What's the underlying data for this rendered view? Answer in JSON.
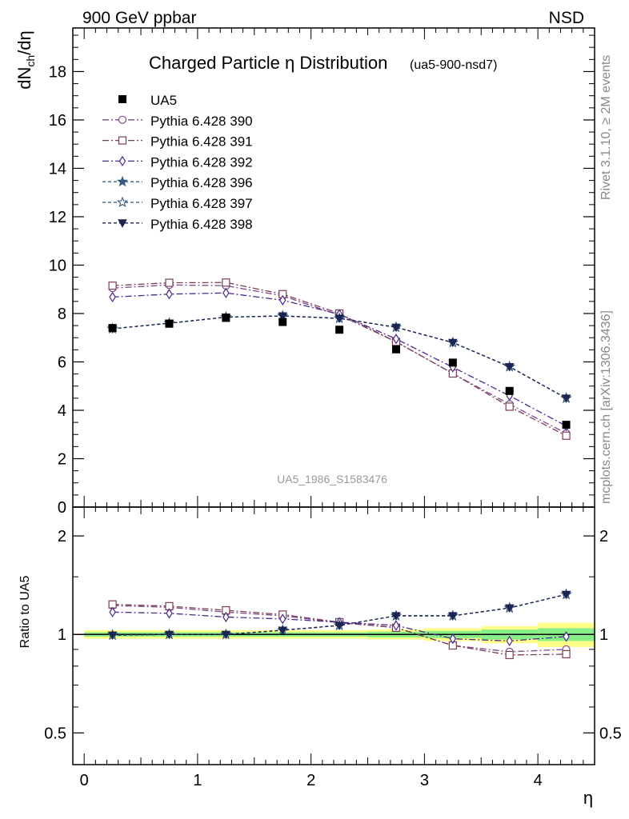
{
  "header": {
    "left_label": "900 GeV ppbar",
    "right_label": "NSD",
    "side_label_top": "Rivet 3.1.10, ≥ 2M events",
    "side_label_bottom": "mcplots.cern.ch [arXiv:1306.3436]"
  },
  "chart_data": [
    {
      "type": "line",
      "title": "Charged Particle η Distribution",
      "subtitle": "(ua5-900-nsd7)",
      "ylabel": "dN_ch/dη",
      "xlim": [
        -0.1,
        4.5
      ],
      "ylim": [
        0,
        19.8
      ],
      "yticks": [
        0,
        2,
        4,
        6,
        8,
        10,
        12,
        14,
        16,
        18
      ],
      "watermark": "UA5_1986_S1583476",
      "x": [
        0.25,
        0.75,
        1.25,
        1.75,
        2.25,
        2.75,
        3.25,
        3.75,
        4.25
      ],
      "data": {
        "name": "UA5",
        "values": [
          7.4,
          7.58,
          7.82,
          7.65,
          7.33,
          6.52,
          5.97,
          4.8,
          3.4
        ]
      },
      "series": [
        {
          "name": "Pythia 6.428 390",
          "color": "#7b4a8c",
          "marker": "circle-open",
          "dash": "dashdot",
          "values": [
            9.05,
            9.18,
            9.15,
            8.73,
            7.93,
            6.83,
            5.52,
            4.25,
            3.05
          ]
        },
        {
          "name": "Pythia 6.428 391",
          "color": "#7a3f55",
          "marker": "square-open",
          "dash": "dashdot",
          "values": [
            9.15,
            9.27,
            9.28,
            8.8,
            8.0,
            6.83,
            5.52,
            4.15,
            2.95
          ]
        },
        {
          "name": "Pythia 6.428 392",
          "color": "#4b2a8a",
          "marker": "diamond-open",
          "dash": "dashdot",
          "values": [
            8.68,
            8.8,
            8.85,
            8.55,
            7.97,
            6.95,
            5.78,
            4.6,
            3.35
          ]
        },
        {
          "name": "Pythia 6.428 396",
          "color": "#355c7d",
          "marker": "star-filled",
          "dash": "dashed",
          "values": [
            7.37,
            7.6,
            7.85,
            7.9,
            7.8,
            7.43,
            6.8,
            5.8,
            4.5
          ]
        },
        {
          "name": "Pythia 6.428 397",
          "color": "#2a4f74",
          "marker": "star-open",
          "dash": "dashed",
          "values": [
            7.37,
            7.6,
            7.85,
            7.9,
            7.8,
            7.43,
            6.8,
            5.8,
            4.5
          ]
        },
        {
          "name": "Pythia 6.428 398",
          "color": "#1c2454",
          "marker": "triangle-down-filled",
          "dash": "dashed",
          "values": [
            7.37,
            7.6,
            7.85,
            7.9,
            7.8,
            7.43,
            6.8,
            5.8,
            4.5
          ]
        }
      ]
    },
    {
      "type": "line",
      "ylabel": "Ratio to UA5",
      "xlabel": "η",
      "xlim": [
        -0.1,
        4.5
      ],
      "ylim": [
        0.4,
        2.45
      ],
      "yticks": [
        0.5,
        1,
        2
      ],
      "xticks": [
        0,
        1,
        2,
        3,
        4
      ],
      "bands": [
        {
          "x0": 0.0,
          "x1": 0.5,
          "inner": [
            0.985,
            1.015
          ],
          "outer": [
            0.97,
            1.03
          ]
        },
        {
          "x0": 0.5,
          "x1": 1.0,
          "inner": [
            0.985,
            1.015
          ],
          "outer": [
            0.97,
            1.03
          ]
        },
        {
          "x0": 1.0,
          "x1": 1.5,
          "inner": [
            0.985,
            1.015
          ],
          "outer": [
            0.97,
            1.03
          ]
        },
        {
          "x0": 1.5,
          "x1": 2.0,
          "inner": [
            0.985,
            1.015
          ],
          "outer": [
            0.97,
            1.03
          ]
        },
        {
          "x0": 2.0,
          "x1": 2.5,
          "inner": [
            0.985,
            1.015
          ],
          "outer": [
            0.97,
            1.03
          ]
        },
        {
          "x0": 2.5,
          "x1": 3.0,
          "inner": [
            0.98,
            1.02
          ],
          "outer": [
            0.965,
            1.035
          ]
        },
        {
          "x0": 3.0,
          "x1": 3.5,
          "inner": [
            0.975,
            1.025
          ],
          "outer": [
            0.955,
            1.045
          ]
        },
        {
          "x0": 3.5,
          "x1": 4.0,
          "inner": [
            0.965,
            1.035
          ],
          "outer": [
            0.94,
            1.06
          ]
        },
        {
          "x0": 4.0,
          "x1": 4.5,
          "inner": [
            0.955,
            1.045
          ],
          "outer": [
            0.915,
            1.085
          ]
        }
      ],
      "series": [
        {
          "name": "Pythia 6.428 390",
          "values": [
            1.225,
            1.21,
            1.17,
            1.14,
            1.085,
            1.05,
            0.925,
            0.885,
            0.9
          ]
        },
        {
          "name": "Pythia 6.428 391",
          "values": [
            1.235,
            1.22,
            1.185,
            1.15,
            1.09,
            1.048,
            0.925,
            0.865,
            0.87
          ]
        },
        {
          "name": "Pythia 6.428 392",
          "values": [
            1.17,
            1.16,
            1.13,
            1.115,
            1.09,
            1.065,
            0.97,
            0.955,
            0.985
          ]
        },
        {
          "name": "Pythia 6.428 396",
          "values": [
            0.995,
            1.0,
            1.0,
            1.03,
            1.065,
            1.14,
            1.14,
            1.205,
            1.325
          ]
        },
        {
          "name": "Pythia 6.428 397",
          "values": [
            0.995,
            1.0,
            1.0,
            1.03,
            1.065,
            1.14,
            1.14,
            1.205,
            1.325
          ]
        },
        {
          "name": "Pythia 6.428 398",
          "values": [
            0.995,
            1.0,
            1.0,
            1.03,
            1.065,
            1.14,
            1.14,
            1.205,
            1.325
          ]
        }
      ]
    }
  ]
}
